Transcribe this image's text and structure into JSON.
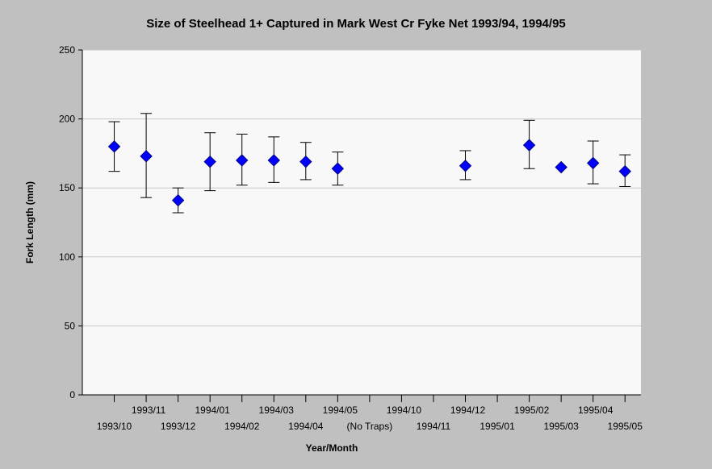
{
  "chart_data": {
    "type": "scatter",
    "title": "Size of Steelhead 1+ Captured in Mark West Cr Fyke Net 1993/94, 1994/95",
    "xlabel": "Year/Month",
    "ylabel": "Fork Length (mm)",
    "ylim": [
      0,
      250
    ],
    "yticks": [
      0,
      50,
      100,
      150,
      200,
      250
    ],
    "grid": "horizontal",
    "categories": [
      "1993/10",
      "1993/11",
      "1993/12",
      "1994/01",
      "1994/02",
      "1994/03",
      "1994/04",
      "1994/05",
      "(No Traps)",
      "1994/10",
      "1994/11",
      "1994/12",
      "1995/01",
      "1995/02",
      "1995/03",
      "1995/04",
      "1995/05"
    ],
    "series": [
      {
        "color": "#0000ff",
        "marker": "diamond",
        "points": [
          {
            "x": "1993/10",
            "y": 180,
            "low": 162,
            "high": 198
          },
          {
            "x": "1993/11",
            "y": 173,
            "low": 143,
            "high": 204
          },
          {
            "x": "1993/12",
            "y": 141,
            "low": 132,
            "high": 150
          },
          {
            "x": "1994/01",
            "y": 169,
            "low": 148,
            "high": 190
          },
          {
            "x": "1994/02",
            "y": 170,
            "low": 152,
            "high": 189
          },
          {
            "x": "1994/03",
            "y": 170,
            "low": 154,
            "high": 187
          },
          {
            "x": "1994/04",
            "y": 169,
            "low": 156,
            "high": 183
          },
          {
            "x": "1994/05",
            "y": 164,
            "low": 152,
            "high": 176
          },
          {
            "x": "1994/12",
            "y": 166,
            "low": 156,
            "high": 177
          },
          {
            "x": "1995/02",
            "y": 181,
            "low": 164,
            "high": 199
          },
          {
            "x": "1995/03",
            "y": 165,
            "low": 165,
            "high": 165
          },
          {
            "x": "1995/04",
            "y": 168,
            "low": 153,
            "high": 184
          },
          {
            "x": "1995/05",
            "y": 162,
            "low": 151,
            "high": 174
          }
        ]
      }
    ]
  }
}
